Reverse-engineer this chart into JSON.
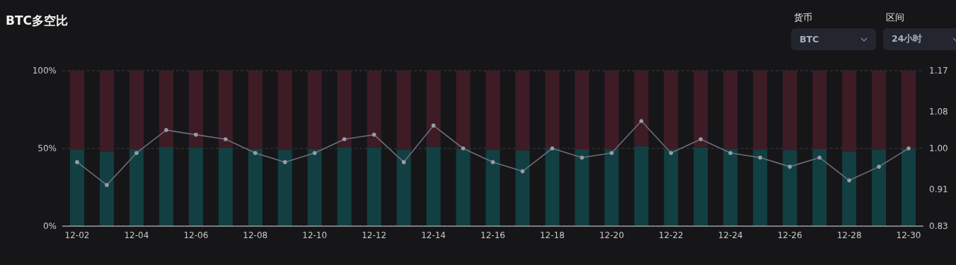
{
  "chart_data": {
    "type": "bar",
    "title": "BTC多空比",
    "categories": [
      "12-02",
      null,
      "12-04",
      null,
      "12-06",
      null,
      "12-08",
      null,
      "12-10",
      null,
      "12-12",
      null,
      "12-14",
      null,
      "12-16",
      null,
      "12-18",
      null,
      "12-20",
      null,
      "12-22",
      null,
      "12-24",
      null,
      "12-26",
      null,
      "12-28",
      null,
      "12-30"
    ],
    "stacked": true,
    "series": [
      {
        "color": "#123f42",
        "values": [
          49.1,
          48.0,
          49.7,
          50.9,
          50.7,
          50.6,
          49.8,
          49.3,
          49.7,
          50.4,
          50.6,
          49.3,
          51.1,
          49.9,
          49.3,
          48.7,
          50.0,
          49.6,
          49.7,
          51.5,
          49.8,
          50.6,
          49.8,
          49.4,
          49.0,
          49.5,
          48.1,
          49.1,
          50.0
        ]
      },
      {
        "color": "#3d1c26",
        "values": [
          50.9,
          52.0,
          50.3,
          49.1,
          49.3,
          49.4,
          50.2,
          50.7,
          50.3,
          49.6,
          49.4,
          50.7,
          48.9,
          50.1,
          50.7,
          51.3,
          50.0,
          50.4,
          50.3,
          48.5,
          50.2,
          49.4,
          50.2,
          50.6,
          51.0,
          50.5,
          51.9,
          50.9,
          50.0
        ]
      },
      {
        "type": "line",
        "axis": "y2",
        "color": "#6b6e79",
        "values": [
          0.97,
          0.92,
          0.99,
          1.04,
          1.03,
          1.02,
          0.99,
          0.97,
          0.99,
          1.02,
          1.03,
          0.97,
          1.05,
          1.0,
          0.97,
          0.95,
          1.0,
          0.98,
          0.99,
          1.06,
          0.99,
          1.02,
          0.99,
          0.98,
          0.96,
          0.98,
          0.93,
          0.96,
          1.0
        ]
      }
    ],
    "ylim": [
      0,
      100
    ],
    "yticks": [
      {
        "value": 0,
        "label": "0%"
      },
      {
        "value": 50,
        "label": "50%"
      },
      {
        "value": 100,
        "label": "100%"
      }
    ],
    "y2lim": [
      0.83,
      1.17
    ],
    "y2ticks": [
      0.83,
      0.91,
      {
        "value": 1,
        "label": "1.00"
      },
      1.08,
      1.17
    ],
    "grid": "y",
    "legend": false,
    "marker": "circle",
    "line_style": "solid",
    "annotations": [
      "货币",
      "BTC",
      "区间",
      "24小时"
    ]
  }
}
